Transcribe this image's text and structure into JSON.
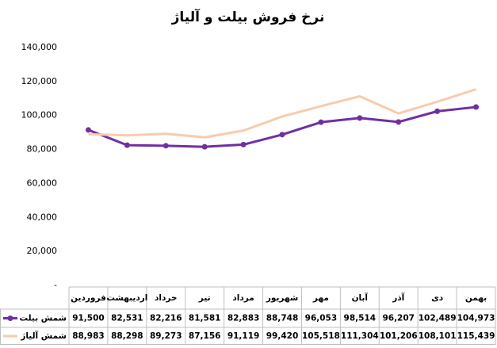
{
  "chart_data": {
    "type": "line",
    "title": "نرخ فروش بیلت و آلیاژ",
    "categories": [
      "فروردین",
      "اردیبهشت",
      "خرداد",
      "تیر",
      "مرداد",
      "شهریور",
      "مهر",
      "آبان",
      "آذر",
      "دی",
      "بهمن"
    ],
    "series": [
      {
        "name": "شمش بیلت",
        "color": "#7030a0",
        "marker": true,
        "values": [
          91500,
          82531,
          82216,
          81581,
          82883,
          88748,
          96053,
          98514,
          96207,
          102489,
          104973
        ],
        "value_labels": [
          "91,500",
          "82,531",
          "82,216",
          "81,581",
          "82,883",
          "88,748",
          "96,053",
          "98,514",
          "96,207",
          "102,489",
          "104,973"
        ]
      },
      {
        "name": "شمش آلیاژ",
        "color": "#f8cbad",
        "marker": false,
        "values": [
          88983,
          88298,
          89273,
          87156,
          91119,
          99420,
          105518,
          111304,
          101206,
          108101,
          115439
        ],
        "value_labels": [
          "88,983",
          "88,298",
          "89,273",
          "87,156",
          "91,119",
          "99,420",
          "105,518",
          "111,304",
          "101,206",
          "108,101",
          "115,439"
        ]
      }
    ],
    "ylim": [
      0,
      140000
    ],
    "yticks": [
      {
        "value": 0,
        "label": "-"
      },
      {
        "value": 20000,
        "label": "20,000"
      },
      {
        "value": 40000,
        "label": "40,000"
      },
      {
        "value": 60000,
        "label": "60,000"
      },
      {
        "value": 80000,
        "label": "80,000"
      },
      {
        "value": 100000,
        "label": "100,000"
      },
      {
        "value": 120000,
        "label": "120,000"
      },
      {
        "value": 140000,
        "label": "140,000"
      }
    ],
    "grid": false
  }
}
